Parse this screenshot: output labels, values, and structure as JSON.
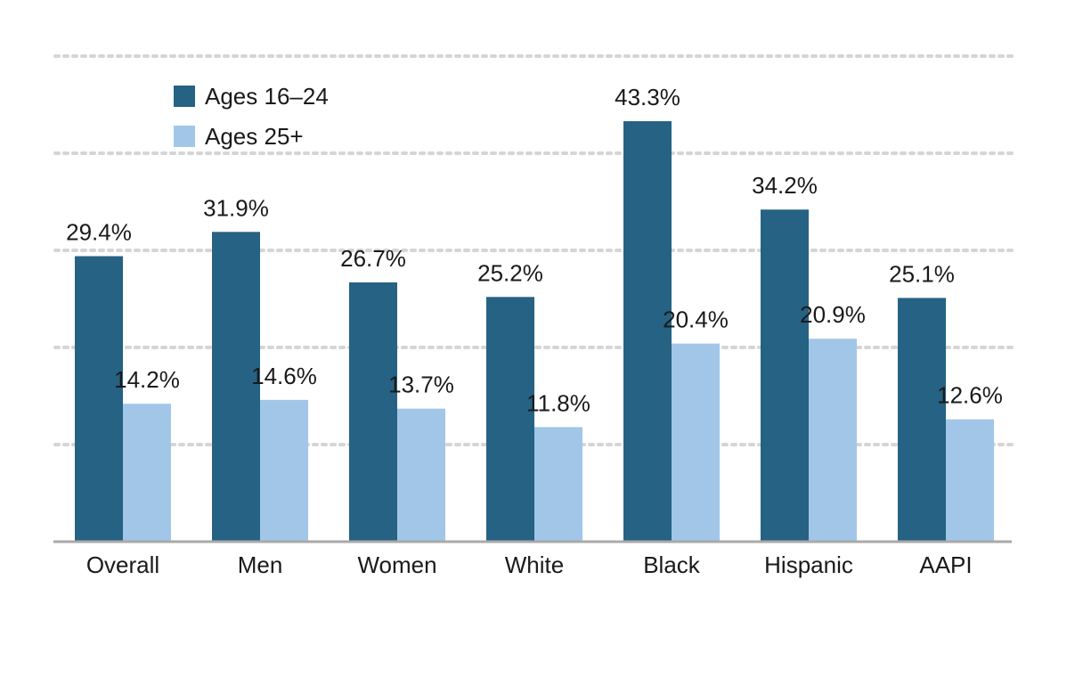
{
  "chart_data": {
    "type": "bar",
    "title": "",
    "xlabel": "",
    "ylabel": "",
    "ylim": [
      0,
      50
    ],
    "grid": true,
    "legend_position": "top-left",
    "categories": [
      "Overall",
      "Men",
      "Women",
      "White",
      "Black",
      "Hispanic",
      "AAPI"
    ],
    "series": [
      {
        "name": "Ages 16–24",
        "color": "#256283",
        "values": [
          29.4,
          31.9,
          26.7,
          25.2,
          43.3,
          34.2,
          25.1
        ],
        "labels": [
          "29.4%",
          "31.9%",
          "26.7%",
          "25.2%",
          "43.3%",
          "34.2%",
          "25.1%"
        ]
      },
      {
        "name": "Ages 25+",
        "color": "#a1c6e8",
        "values": [
          14.2,
          14.6,
          13.7,
          11.8,
          20.4,
          20.9,
          12.6
        ],
        "labels": [
          "14.2%",
          "14.6%",
          "13.7%",
          "11.8%",
          "20.4%",
          "20.9%",
          "12.6%"
        ]
      }
    ]
  }
}
